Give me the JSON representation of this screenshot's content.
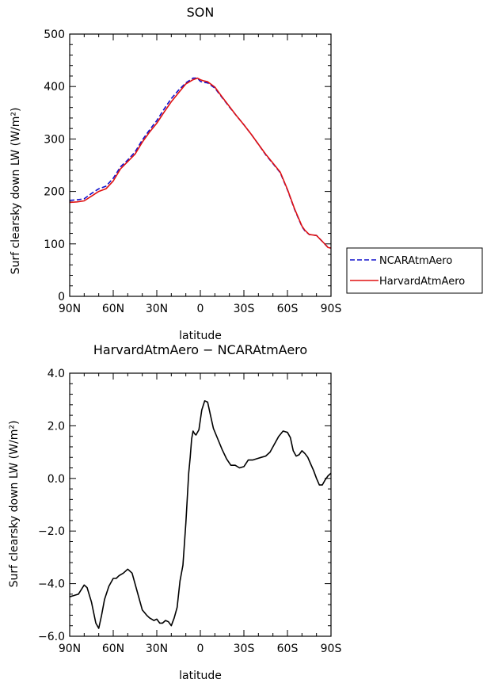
{
  "chart_data": [
    {
      "type": "line",
      "title": "SON",
      "xlabel": "latitude",
      "ylabel": "Surf clearsky down LW (W/m²)",
      "xlim": [
        90,
        -90
      ],
      "ylim": [
        0,
        500
      ],
      "xticks": [
        {
          "value": 90,
          "label": "90N"
        },
        {
          "value": 60,
          "label": "60N"
        },
        {
          "value": 30,
          "label": "30N"
        },
        {
          "value": 0,
          "label": "0"
        },
        {
          "value": -30,
          "label": "30S"
        },
        {
          "value": -60,
          "label": "60S"
        },
        {
          "value": -90,
          "label": "90S"
        }
      ],
      "yticks": [
        {
          "value": 0,
          "label": "0"
        },
        {
          "value": 100,
          "label": "100"
        },
        {
          "value": 200,
          "label": "200"
        },
        {
          "value": 300,
          "label": "300"
        },
        {
          "value": 400,
          "label": "400"
        },
        {
          "value": 500,
          "label": "500"
        }
      ],
      "legend": {
        "placement": "right",
        "entries": [
          {
            "label": "NCARAtmAero",
            "color": "#1010cc",
            "dash": true
          },
          {
            "label": "HarvardAtmAero",
            "color": "#e01010",
            "dash": false
          }
        ]
      },
      "series": [
        {
          "name": "NCARAtmAero",
          "color": "#1010cc",
          "dash": true,
          "x": [
            90,
            85,
            80,
            75,
            70,
            65,
            60,
            55,
            50,
            45,
            40,
            35,
            30,
            25,
            20,
            15,
            10,
            5,
            2,
            0,
            -2,
            -5,
            -10,
            -15,
            -20,
            -25,
            -30,
            -35,
            -40,
            -45,
            -50,
            -55,
            -60,
            -65,
            -70,
            -72,
            -75,
            -80,
            -85,
            -88,
            -90
          ],
          "y": [
            183,
            184,
            186,
            196,
            205,
            210,
            225,
            247,
            260,
            275,
            298,
            317,
            335,
            357,
            377,
            393,
            407,
            416,
            416,
            410,
            408,
            407,
            397,
            379,
            361,
            344,
            327,
            309,
            290,
            270,
            253,
            236,
            203,
            165,
            133,
            125,
            118,
            116,
            102,
            93,
            92
          ]
        },
        {
          "name": "HarvardAtmAero",
          "color": "#e01010",
          "dash": false,
          "x": [
            90,
            85,
            80,
            75,
            70,
            65,
            60,
            55,
            50,
            45,
            40,
            35,
            30,
            25,
            20,
            15,
            10,
            5,
            2,
            0,
            -2,
            -5,
            -10,
            -15,
            -20,
            -25,
            -30,
            -35,
            -40,
            -45,
            -50,
            -55,
            -60,
            -65,
            -70,
            -72,
            -75,
            -80,
            -85,
            -88,
            -90
          ],
          "y": [
            179,
            180,
            182,
            191,
            200,
            205,
            220,
            243,
            257,
            271,
            294,
            313,
            330,
            351,
            371,
            388,
            405,
            413,
            416,
            413,
            411,
            409,
            399,
            380,
            362,
            344,
            327,
            309,
            290,
            271,
            254,
            237,
            204,
            166,
            134,
            126,
            118,
            116,
            102,
            93,
            92
          ]
        }
      ]
    },
    {
      "type": "line",
      "title": "HarvardAtmAero − NCARAtmAero",
      "xlabel": "latitude",
      "ylabel": "Surf clearsky down LW (W/m²)",
      "xlim": [
        90,
        -90
      ],
      "ylim": [
        -6,
        4
      ],
      "xticks": [
        {
          "value": 90,
          "label": "90N"
        },
        {
          "value": 60,
          "label": "60N"
        },
        {
          "value": 30,
          "label": "30N"
        },
        {
          "value": 0,
          "label": "0"
        },
        {
          "value": -30,
          "label": "30S"
        },
        {
          "value": -60,
          "label": "60S"
        },
        {
          "value": -90,
          "label": "90S"
        }
      ],
      "yticks": [
        {
          "value": -6,
          "label": "−6.0"
        },
        {
          "value": -4,
          "label": "−4.0"
        },
        {
          "value": -2,
          "label": "−2.0"
        },
        {
          "value": 0,
          "label": "0.0"
        },
        {
          "value": 2,
          "label": "2.0"
        },
        {
          "value": 4,
          "label": "4.0"
        }
      ],
      "series": [
        {
          "color": "#000000",
          "dash": false,
          "x": [
            90,
            87,
            84,
            80,
            78,
            75,
            72,
            70,
            68,
            66,
            63,
            60,
            58,
            56,
            53,
            50,
            47,
            45,
            42,
            40,
            37,
            35,
            32,
            30,
            28,
            26,
            24,
            22,
            20,
            18,
            16,
            14,
            12,
            10,
            8,
            7,
            6,
            5,
            4,
            3,
            1,
            -1,
            -3,
            -5,
            -7,
            -9,
            -12,
            -15,
            -18,
            -21,
            -24,
            -27,
            -30,
            -33,
            -36,
            -39,
            -42,
            -45,
            -48,
            -51,
            -54,
            -57,
            -60,
            -62,
            -64,
            -66,
            -68,
            -70,
            -72,
            -74,
            -76,
            -78,
            -80,
            -82,
            -84,
            -86,
            -88,
            -90
          ],
          "y": [
            -4.5,
            -4.45,
            -4.4,
            -4.05,
            -4.15,
            -4.7,
            -5.5,
            -5.7,
            -5.2,
            -4.6,
            -4.1,
            -3.8,
            -3.8,
            -3.7,
            -3.6,
            -3.45,
            -3.6,
            -4.0,
            -4.6,
            -5.0,
            -5.2,
            -5.3,
            -5.4,
            -5.35,
            -5.5,
            -5.5,
            -5.4,
            -5.45,
            -5.6,
            -5.3,
            -4.9,
            -3.9,
            -3.3,
            -1.7,
            0.2,
            0.8,
            1.5,
            1.8,
            1.7,
            1.65,
            1.85,
            2.6,
            2.95,
            2.9,
            2.4,
            1.9,
            1.5,
            1.1,
            0.75,
            0.5,
            0.5,
            0.4,
            0.45,
            0.7,
            0.7,
            0.75,
            0.8,
            0.85,
            1.0,
            1.3,
            1.6,
            1.8,
            1.75,
            1.55,
            1.05,
            0.85,
            0.9,
            1.05,
            0.95,
            0.8,
            0.55,
            0.3,
            0.0,
            -0.25,
            -0.25,
            -0.05,
            0.1,
            0.2
          ]
        }
      ]
    }
  ]
}
